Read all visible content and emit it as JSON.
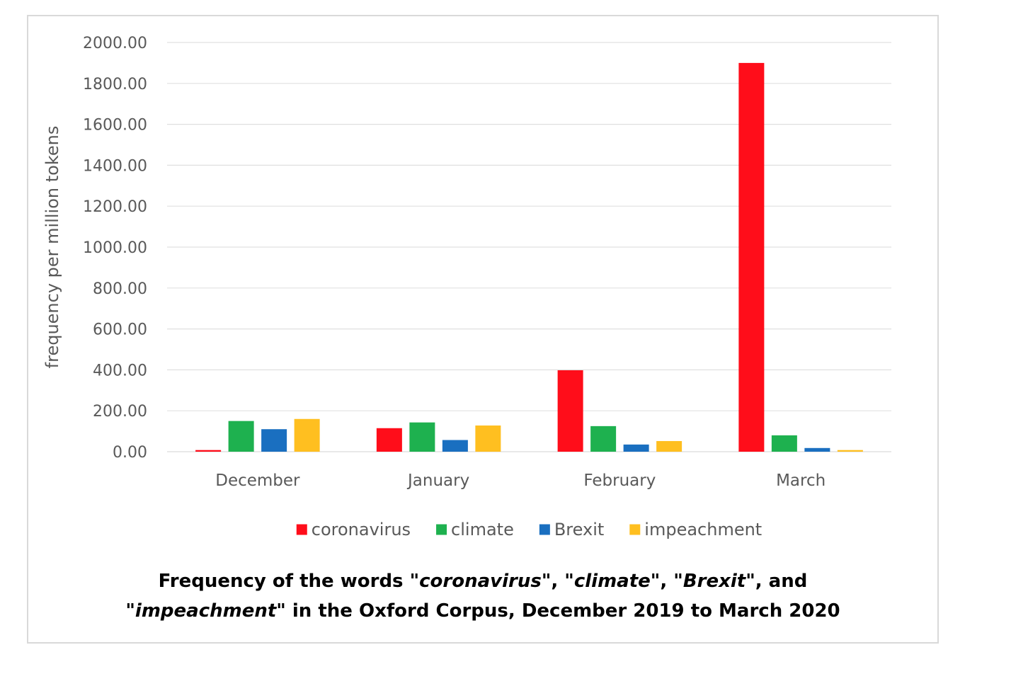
{
  "chart_data": {
    "type": "bar",
    "title_parts": [
      {
        "text": "Frequency of the words \"",
        "italic": false
      },
      {
        "text": "coronavirus",
        "italic": true
      },
      {
        "text": "\", \"",
        "italic": false
      },
      {
        "text": "climate",
        "italic": true
      },
      {
        "text": "\", \"",
        "italic": false
      },
      {
        "text": "Brexit",
        "italic": true
      },
      {
        "text": "\", and",
        "italic": false
      },
      {
        "text": "\n",
        "italic": false
      },
      {
        "text": "\"",
        "italic": false
      },
      {
        "text": "impeachment",
        "italic": true
      },
      {
        "text": "\" in the Oxford Corpus, December 2019 to March 2020",
        "italic": false
      }
    ],
    "xlabel": "",
    "ylabel": "frequency per million tokens",
    "ylim": [
      0,
      2000
    ],
    "ytick_step": 200,
    "ytick_format_decimals": 2,
    "grid": true,
    "legend_position": "bottom",
    "categories": [
      "December",
      "January",
      "February",
      "March"
    ],
    "series": [
      {
        "name": "coronavirus",
        "color": "#ff0d1a",
        "values": [
          8,
          115,
          398,
          1900
        ]
      },
      {
        "name": "climate",
        "color": "#1eb14f",
        "values": [
          150,
          143,
          125,
          80
        ]
      },
      {
        "name": "Brexit",
        "color": "#1a6fc0",
        "values": [
          110,
          57,
          35,
          18
        ]
      },
      {
        "name": "impeachment",
        "color": "#ffbf20",
        "values": [
          160,
          128,
          52,
          8
        ]
      }
    ]
  }
}
